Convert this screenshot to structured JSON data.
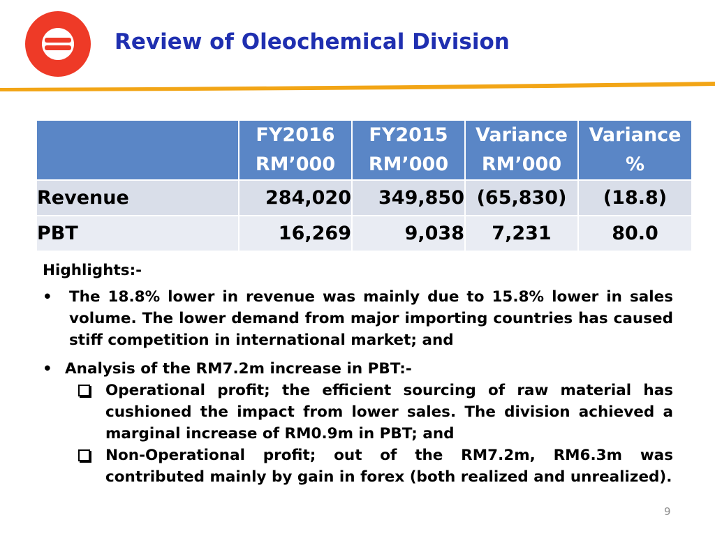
{
  "header": {
    "title": "Review of Oleochemical Division",
    "logo": "brand-logo-icon",
    "accent_color": "#ee3a27",
    "title_color": "#1f2fb0",
    "divider_color": "#f2a516"
  },
  "table": {
    "header_color": "#5a86c6",
    "columns": [
      {
        "line1": "",
        "line2": ""
      },
      {
        "line1": "FY2016",
        "line2": "RM’000"
      },
      {
        "line1": "FY2015",
        "line2": "RM’000"
      },
      {
        "line1": "Variance",
        "line2": "RM’000"
      },
      {
        "line1": "Variance",
        "line2": "%"
      }
    ],
    "rows": [
      {
        "label": "Revenue",
        "fy2016": "284,020",
        "fy2015": "349,850",
        "variance_rm": "(65,830)",
        "variance_pct": "(18.8)"
      },
      {
        "label": "PBT",
        "fy2016": "16,269",
        "fy2015": "9,038",
        "variance_rm": "7,231",
        "variance_pct": "80.0"
      }
    ]
  },
  "highlights": {
    "heading": "Highlights:-",
    "bullets": [
      {
        "marker": "•",
        "text": "The 18.8% lower in revenue was mainly due to 15.8% lower in sales volume. The lower demand from major importing countries has caused stiff competition in international market; and"
      },
      {
        "marker": "•",
        "text": "Analysis of the RM7.2m increase in PBT:-",
        "sub": [
          {
            "marker": "checkbox-bullet-icon",
            "text": "Operational profit; the efficient sourcing of raw material has cushioned the impact from lower sales. The division achieved a marginal increase of RM0.9m in PBT; and"
          },
          {
            "marker": "checkbox-bullet-icon",
            "text": "Non-Operational profit; out of the RM7.2m, RM6.3m was contributed mainly by gain in forex (both realized and unrealized)."
          }
        ]
      }
    ]
  },
  "page_number": "9"
}
